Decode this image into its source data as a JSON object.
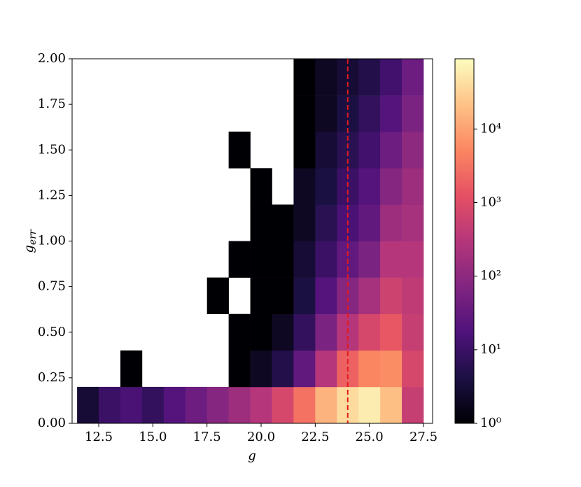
{
  "chart_data": {
    "type": "hist2d",
    "xlabel": "g",
    "ylabel": {
      "text": "g",
      "sub": "err"
    },
    "xlim": [
      11.27,
      27.92
    ],
    "ylim": [
      0,
      2
    ],
    "xticks": [
      12.5,
      {
        "value": 15,
        "label": "15.0"
      },
      17.5,
      {
        "value": 20,
        "label": "20.0"
      },
      22.5,
      {
        "value": 25,
        "label": "25.0"
      },
      27.5
    ],
    "yticks": [
      {
        "value": 0,
        "label": "0.00"
      },
      {
        "value": 0.25,
        "label": "0.25"
      },
      {
        "value": 0.5,
        "label": "0.50"
      },
      {
        "value": 0.75,
        "label": "0.75"
      },
      {
        "value": 1,
        "label": "1.00"
      },
      {
        "value": 1.25,
        "label": "1.25"
      },
      {
        "value": 1.5,
        "label": "1.50"
      },
      {
        "value": 1.75,
        "label": "1.75"
      },
      {
        "value": 2,
        "label": "2.00"
      }
    ],
    "x_edges": [
      11.5,
      12.5,
      13.5,
      14.5,
      15.5,
      16.5,
      17.5,
      18.5,
      19.5,
      20.5,
      21.5,
      22.5,
      23.5,
      24.5,
      25.5,
      26.5,
      27.5
    ],
    "y_edges": [
      0,
      0.2,
      0.4,
      0.6,
      0.8,
      1.0,
      1.2,
      1.4,
      1.6,
      1.8,
      2.0
    ],
    "counts": [
      [
        3,
        10,
        15,
        8,
        20,
        40,
        80,
        150,
        300,
        800,
        3000,
        15000,
        40000,
        60000,
        20000,
        500
      ],
      [
        0,
        0,
        1,
        0,
        0,
        0,
        0,
        1,
        2,
        5,
        30,
        300,
        2000,
        5000,
        6000,
        800
      ],
      [
        0,
        0,
        0,
        0,
        0,
        0,
        0,
        1,
        1,
        2,
        8,
        60,
        300,
        800,
        1500,
        500
      ],
      [
        0,
        0,
        0,
        0,
        0,
        0,
        1,
        0,
        1,
        1,
        4,
        20,
        80,
        200,
        600,
        400
      ],
      [
        0,
        0,
        0,
        0,
        0,
        0,
        0,
        1,
        1,
        1,
        3,
        10,
        30,
        60,
        300,
        300
      ],
      [
        0,
        0,
        0,
        0,
        0,
        0,
        0,
        0,
        1,
        1,
        2,
        6,
        15,
        30,
        150,
        200
      ],
      [
        0,
        0,
        0,
        0,
        0,
        0,
        0,
        0,
        1,
        0,
        2,
        4,
        10,
        20,
        80,
        150
      ],
      [
        0,
        0,
        0,
        0,
        0,
        0,
        0,
        1,
        0,
        0,
        1,
        3,
        6,
        12,
        40,
        100
      ],
      [
        0,
        0,
        0,
        0,
        0,
        0,
        0,
        0,
        0,
        0,
        1,
        2,
        4,
        8,
        20,
        60
      ],
      [
        0,
        0,
        0,
        0,
        0,
        0,
        0,
        0,
        0,
        0,
        1,
        2,
        3,
        5,
        12,
        40
      ]
    ],
    "colormap": "magma",
    "colorbar": {
      "log": true,
      "lim": [
        1,
        90000
      ],
      "ticks": [
        {
          "value": 1,
          "label": "10⁰"
        },
        {
          "value": 10,
          "label": "10¹"
        },
        {
          "value": 100,
          "label": "10²"
        },
        {
          "value": 1000,
          "label": "10³"
        },
        {
          "value": 10000,
          "label": "10⁴"
        }
      ]
    },
    "vline": {
      "x": 24,
      "color": "#e41a1c",
      "dashed": true
    }
  }
}
